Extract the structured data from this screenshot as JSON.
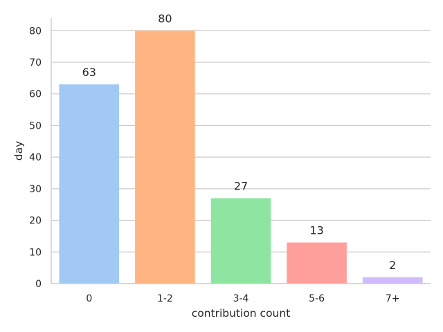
{
  "chart_data": {
    "type": "bar",
    "title": "",
    "xlabel": "contribution count",
    "ylabel": "day",
    "categories": [
      "0",
      "1-2",
      "3-4",
      "5-6",
      "7+"
    ],
    "values": [
      63,
      80,
      27,
      13,
      2
    ],
    "data_labels": [
      "63",
      "80",
      "27",
      "13",
      "2"
    ],
    "colors": [
      "#a1c9f4",
      "#ffb482",
      "#8de5a1",
      "#ff9f9b",
      "#d0bbff"
    ],
    "ylim": [
      0,
      84
    ],
    "yticks": [
      0,
      10,
      20,
      30,
      40,
      50,
      60,
      70,
      80
    ],
    "grid": "horizontal",
    "legend": "none"
  }
}
